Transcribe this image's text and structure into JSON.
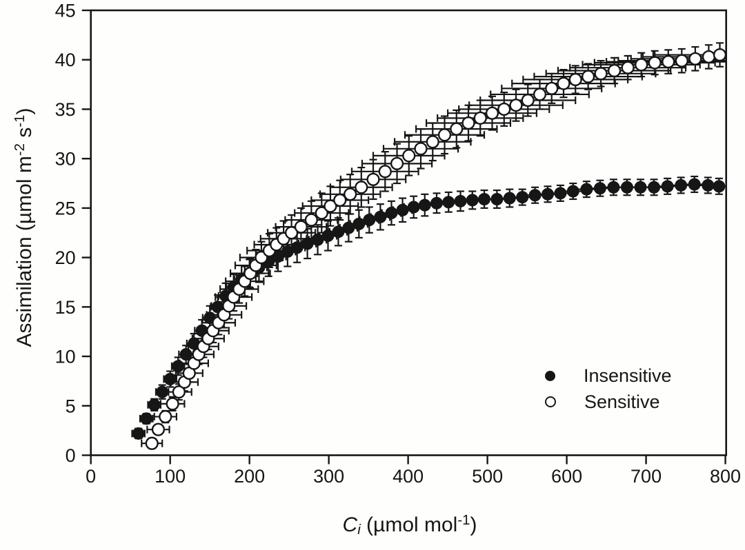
{
  "figure": {
    "background": "#fefefc",
    "ink": "#161616",
    "open_marker_fill": "#ffffff"
  },
  "chart_data": {
    "type": "scatter",
    "x_axis": {
      "label_plain": "Ci (µmol mol-1)",
      "label_parts": [
        {
          "kind": "italic",
          "text": "C"
        },
        {
          "kind": "sub_italic",
          "text": "i"
        },
        {
          "kind": "text",
          "text": " (µmol mol"
        },
        {
          "kind": "sup",
          "text": "-1"
        },
        {
          "kind": "text",
          "text": ")"
        }
      ],
      "ticks": [
        0,
        100,
        200,
        300,
        400,
        500,
        600,
        700,
        800
      ],
      "range": [
        0,
        801
      ]
    },
    "y_axis": {
      "label_plain": "Assimilation (µmol m-2 s-1)",
      "label_parts": [
        {
          "kind": "text",
          "text": "Assimilation (µmol m"
        },
        {
          "kind": "sup",
          "text": "-2"
        },
        {
          "kind": "text",
          "text": " s"
        },
        {
          "kind": "sup",
          "text": "-1"
        },
        {
          "kind": "text",
          "text": ")"
        }
      ],
      "ticks": [
        0,
        5,
        10,
        15,
        20,
        25,
        30,
        35,
        40,
        45
      ],
      "range": [
        0,
        45
      ]
    },
    "legend": {
      "position": "inside-lower-right",
      "entries": [
        "Insensitive",
        "Sensitive"
      ]
    },
    "point_format": [
      "ci",
      "assimilation",
      "ci_error",
      "assimilation_error"
    ],
    "series": [
      {
        "name": "Insensitive",
        "marker": "filled-circle",
        "points": [
          [
            60,
            2.2,
            8,
            0.5
          ],
          [
            70,
            3.7,
            8,
            0.5
          ],
          [
            80,
            5.1,
            8,
            0.6
          ],
          [
            90,
            6.4,
            8,
            0.7
          ],
          [
            100,
            7.7,
            8,
            0.8
          ],
          [
            110,
            9.0,
            8,
            0.9
          ],
          [
            120,
            10.2,
            9,
            0.9
          ],
          [
            130,
            11.3,
            9,
            1.0
          ],
          [
            140,
            12.6,
            9,
            1.1
          ],
          [
            150,
            13.9,
            9,
            1.2
          ],
          [
            160,
            15.0,
            9,
            1.2
          ],
          [
            170,
            16.1,
            9,
            1.3
          ],
          [
            180,
            17.0,
            9,
            1.3
          ],
          [
            190,
            17.8,
            9,
            1.4
          ],
          [
            200,
            18.4,
            10,
            1.4
          ],
          [
            212,
            19.0,
            10,
            1.5
          ],
          [
            224,
            19.6,
            10,
            1.5
          ],
          [
            236,
            20.1,
            10,
            1.5
          ],
          [
            248,
            20.6,
            10,
            1.5
          ],
          [
            260,
            21.0,
            10,
            1.5
          ],
          [
            273,
            21.4,
            11,
            1.5
          ],
          [
            286,
            21.8,
            11,
            1.5
          ],
          [
            299,
            22.2,
            11,
            1.5
          ],
          [
            312,
            22.6,
            11,
            1.4
          ],
          [
            325,
            23.0,
            11,
            1.4
          ],
          [
            338,
            23.4,
            11,
            1.4
          ],
          [
            351,
            23.8,
            12,
            1.3
          ],
          [
            365,
            24.1,
            12,
            1.3
          ],
          [
            379,
            24.5,
            12,
            1.2
          ],
          [
            393,
            24.8,
            12,
            1.2
          ],
          [
            407,
            25.1,
            12,
            1.1
          ],
          [
            421,
            25.3,
            12,
            1.1
          ],
          [
            436,
            25.5,
            13,
            1.0
          ],
          [
            451,
            25.6,
            13,
            1.0
          ],
          [
            466,
            25.7,
            13,
            1.0
          ],
          [
            481,
            25.8,
            13,
            0.9
          ],
          [
            496,
            25.9,
            13,
            0.9
          ],
          [
            512,
            25.9,
            14,
            0.9
          ],
          [
            528,
            26.0,
            14,
            0.9
          ],
          [
            544,
            26.1,
            14,
            0.8
          ],
          [
            560,
            26.3,
            14,
            0.8
          ],
          [
            576,
            26.4,
            14,
            0.8
          ],
          [
            592,
            26.5,
            15,
            0.8
          ],
          [
            608,
            26.7,
            15,
            0.8
          ],
          [
            625,
            26.9,
            15,
            0.8
          ],
          [
            642,
            27.0,
            15,
            0.8
          ],
          [
            659,
            27.1,
            16,
            0.8
          ],
          [
            676,
            27.1,
            16,
            0.8
          ],
          [
            693,
            27.1,
            16,
            0.8
          ],
          [
            710,
            27.1,
            16,
            0.8
          ],
          [
            727,
            27.2,
            16,
            0.8
          ],
          [
            744,
            27.3,
            17,
            0.8
          ],
          [
            761,
            27.4,
            17,
            0.8
          ],
          [
            778,
            27.3,
            17,
            0.8
          ],
          [
            792,
            27.2,
            17,
            0.8
          ]
        ]
      },
      {
        "name": "Sensitive",
        "marker": "open-circle",
        "points": [
          [
            77,
            1.2,
            13,
            0.5
          ],
          [
            85,
            2.6,
            14,
            0.5
          ],
          [
            94,
            3.9,
            14,
            0.6
          ],
          [
            103,
            5.2,
            15,
            0.7
          ],
          [
            111,
            6.4,
            16,
            0.8
          ],
          [
            118,
            7.4,
            17,
            0.9
          ],
          [
            124,
            8.3,
            17,
            0.9
          ],
          [
            130,
            9.3,
            18,
            1.0
          ],
          [
            136,
            10.2,
            19,
            1.0
          ],
          [
            142,
            11.0,
            19,
            1.1
          ],
          [
            148,
            11.8,
            20,
            1.1
          ],
          [
            154,
            12.6,
            20,
            1.2
          ],
          [
            161,
            13.4,
            21,
            1.2
          ],
          [
            168,
            14.2,
            22,
            1.3
          ],
          [
            174,
            15.1,
            22,
            1.3
          ],
          [
            180,
            16.0,
            23,
            1.4
          ],
          [
            187,
            16.8,
            24,
            1.4
          ],
          [
            194,
            17.6,
            24,
            1.5
          ],
          [
            201,
            18.4,
            25,
            1.5
          ],
          [
            208,
            19.2,
            26,
            1.6
          ],
          [
            215,
            20.0,
            27,
            1.6
          ],
          [
            225,
            20.7,
            28,
            1.7
          ],
          [
            234,
            21.3,
            28,
            1.7
          ],
          [
            243,
            21.9,
            29,
            1.8
          ],
          [
            253,
            22.5,
            30,
            1.8
          ],
          [
            265,
            23.1,
            32,
            1.9
          ],
          [
            278,
            23.8,
            33,
            1.9
          ],
          [
            291,
            24.5,
            34,
            2.0
          ],
          [
            302,
            25.2,
            35,
            2.0
          ],
          [
            314,
            25.8,
            36,
            2.0
          ],
          [
            327,
            26.4,
            38,
            2.0
          ],
          [
            341,
            27.1,
            39,
            2.0
          ],
          [
            356,
            27.9,
            41,
            2.0
          ],
          [
            371,
            28.7,
            42,
            2.0
          ],
          [
            386,
            29.5,
            44,
            2.0
          ],
          [
            401,
            30.3,
            45,
            2.0
          ],
          [
            416,
            31.0,
            47,
            2.0
          ],
          [
            431,
            31.7,
            48,
            1.9
          ],
          [
            446,
            32.4,
            50,
            1.9
          ],
          [
            461,
            33.0,
            51,
            1.9
          ],
          [
            476,
            33.6,
            53,
            1.8
          ],
          [
            491,
            34.1,
            54,
            1.8
          ],
          [
            506,
            34.6,
            56,
            1.7
          ],
          [
            521,
            35.0,
            57,
            1.7
          ],
          [
            536,
            35.4,
            59,
            1.6
          ],
          [
            551,
            35.9,
            60,
            1.6
          ],
          [
            566,
            36.5,
            62,
            1.5
          ],
          [
            581,
            37.1,
            63,
            1.5
          ],
          [
            596,
            37.6,
            65,
            1.4
          ],
          [
            611,
            38.0,
            66,
            1.4
          ],
          [
            627,
            38.3,
            68,
            1.3
          ],
          [
            643,
            38.6,
            69,
            1.3
          ],
          [
            660,
            38.9,
            71,
            1.3
          ],
          [
            677,
            39.2,
            73,
            1.2
          ],
          [
            694,
            39.5,
            74,
            1.2
          ],
          [
            711,
            39.7,
            76,
            1.2
          ],
          [
            728,
            39.8,
            78,
            1.2
          ],
          [
            745,
            39.9,
            80,
            1.2
          ],
          [
            762,
            40.1,
            81,
            1.2
          ],
          [
            779,
            40.3,
            83,
            1.2
          ],
          [
            793,
            40.5,
            84,
            1.2
          ]
        ]
      }
    ]
  }
}
